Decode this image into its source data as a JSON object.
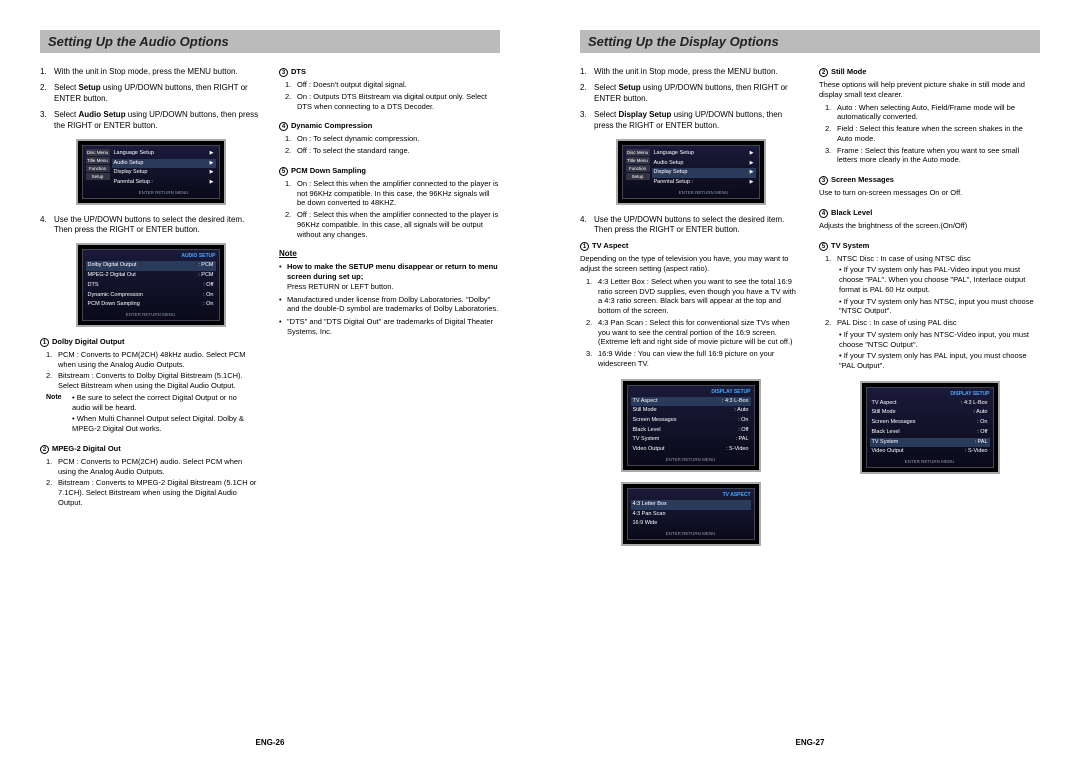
{
  "left_page": {
    "title": "Setting Up the Audio Options",
    "footer": "ENG-26",
    "steps_a": [
      {
        "n": "1.",
        "t": "With the unit in Stop mode, press the MENU button."
      },
      {
        "n": "2.",
        "t": "Select <b>Setup</b> using UP/DOWN buttons, then RIGHT or ENTER button."
      },
      {
        "n": "3.",
        "t": "Select <b>Audio Setup</b> using UP/DOWN buttons, then press the RIGHT or ENTER button."
      }
    ],
    "step4": {
      "n": "4.",
      "t": "Use the UP/DOWN buttons to select the desired item. Then press the RIGHT or ENTER button."
    },
    "menu_screenshot": {
      "tabs": [
        "Disc Menu",
        "Title Menu",
        "Function",
        "Setup"
      ],
      "items": [
        "Language Setup",
        "Audio Setup",
        "Display Setup",
        "Parental Setup :"
      ],
      "selected": 1,
      "footer": "ENTER    RETURN    MENU"
    },
    "audio_screenshot": {
      "title": "AUDIO SETUP",
      "rows": [
        {
          "l": "Dolby Digital Output",
          "r": ": PCM",
          "sel": true
        },
        {
          "l": "MPEG-2 Digital Out",
          "r": ": PCM"
        },
        {
          "l": "DTS",
          "r": ": Off"
        },
        {
          "l": "Dynamic Compression",
          "r": ": On"
        },
        {
          "l": "PCM Down Sampling",
          "r": ": On"
        }
      ],
      "footer": "ENTER    RETURN    MENU"
    },
    "defs_col1a": [
      {
        "num": "1",
        "title": "Dolby Digital Output",
        "items": [
          {
            "n": "1.",
            "t": "PCM : Converts to PCM(2CH) 48kHz audio. Select PCM when using the Analog Audio Outputs."
          },
          {
            "n": "2.",
            "t": "Bitstream : Converts to Dolby Digital Bitstream (5.1CH). Select Bitstream when using the Digital Audio Output."
          }
        ],
        "notes": [
          {
            "label": "Note",
            "t": "Be sure to select the correct Digital Output or no audio will be heard."
          },
          {
            "label": "",
            "t": "When Multi Channel Output select Digital. Dolby & MPEG-2 Digital Out works."
          }
        ]
      },
      {
        "num": "2",
        "title": "MPEG-2 Digital Out",
        "items": [
          {
            "n": "1.",
            "t": "PCM : Converts to PCM(2CH) audio. Select PCM when using the Analog Audio Outputs."
          },
          {
            "n": "2.",
            "t": "Bitstream : Converts to MPEG-2 Digital Bitstream (5.1CH or 7.1CH). Select Bitstream when using the Digital Audio Output."
          }
        ]
      }
    ],
    "defs_col2": [
      {
        "num": "3",
        "title": "DTS",
        "items": [
          {
            "n": "1.",
            "t": "Off : Doesn't output digital signal."
          },
          {
            "n": "2.",
            "t": "On : Outputs DTS Bitstream via digital output only. Select DTS when connecting to a DTS Decoder."
          }
        ]
      },
      {
        "num": "4",
        "title": "Dynamic Compression",
        "items": [
          {
            "n": "1.",
            "t": "On : To select dynamic compression."
          },
          {
            "n": "2.",
            "t": "Off : To select the standard range."
          }
        ]
      },
      {
        "num": "5",
        "title": "PCM Down Sampling",
        "items": [
          {
            "n": "1.",
            "t": "On : Select this when the amplifier connected to the player is not 96KHz compatible. In this case, the 96KHz signals will be down converted to 48KHZ."
          },
          {
            "n": "2.",
            "t": "Off : Select this when the amplifier connected to the player is 96KHz compatible. In this case, all signals will be output without any changes."
          }
        ]
      }
    ],
    "note_section": {
      "title": "Note",
      "bullets": [
        "<b>How to make the SETUP menu disappear or return to menu screen during set up;</b><br>Press RETURN or LEFT button.",
        "Manufactured under license from Dolby Laboratories. \"Dolby\" and the double-D symbol are trademarks of Dolby Laboratories.",
        "\"DTS\" and \"DTS Digital Out\" are trademarks of Digital Theater Systems, Inc."
      ]
    }
  },
  "right_page": {
    "title": "Setting Up the Display Options",
    "footer": "ENG-27",
    "steps_a": [
      {
        "n": "1.",
        "t": "With the unit in Stop mode, press the MENU button."
      },
      {
        "n": "2.",
        "t": "Select <b>Setup</b> using UP/DOWN buttons, then RIGHT or ENTER button."
      },
      {
        "n": "3.",
        "t": "Select <b>Display Setup</b> using UP/DOWN buttons, then press the RIGHT or ENTER button."
      }
    ],
    "step4": {
      "n": "4.",
      "t": "Use the UP/DOWN buttons to select the desired item. Then press the RIGHT or ENTER button."
    },
    "menu_screenshot": {
      "tabs": [
        "Disc Menu",
        "Title Menu",
        "Function",
        "Setup"
      ],
      "items": [
        "Language Setup",
        "Audio Setup",
        "Display Setup",
        "Parental Setup :"
      ],
      "selected": 2,
      "footer": "ENTER    RETURN    MENU"
    },
    "tv_aspect_def": {
      "num": "1",
      "title": "TV Aspect",
      "intro": "Depending on the type of television you have, you may want to adjust the screen setting (aspect ratio).",
      "items": [
        {
          "n": "1.",
          "t": "4:3 Letter Box : Select when you want to see the total 16:9 ratio screen DVD supplies, even though you have a TV with a 4:3 ratio screen. Black bars will appear at the top and bottom of the screen."
        },
        {
          "n": "2.",
          "t": "4:3 Pan Scan : Select this for conventional size TVs when you want to see the central portion of the 16:9 screen. (Extreme left and right side of movie picture will be cut off.)"
        },
        {
          "n": "3.",
          "t": "16:9 Wide : You can view the full 16:9 picture on your widescreen TV."
        }
      ]
    },
    "display_screenshot": {
      "title": "DISPLAY SETUP",
      "rows": [
        {
          "l": "TV Aspect",
          "r": ": 4:3 L-Box",
          "sel": true
        },
        {
          "l": "Still Mode",
          "r": ": Auto"
        },
        {
          "l": "Screen Messages",
          "r": ": On"
        },
        {
          "l": "Black Level",
          "r": ": Off"
        },
        {
          "l": "TV System",
          "r": ": PAL"
        },
        {
          "l": "Video Output",
          "r": ": S-Video"
        }
      ],
      "footer": "ENTER    RETURN    MENU"
    },
    "tvaspect_screenshot": {
      "title": "TV ASPECT",
      "rows": [
        {
          "l": "4:3 Letter Box",
          "r": "",
          "sel": true
        },
        {
          "l": "4:3 Pan Scan",
          "r": ""
        },
        {
          "l": "16:9 Wide",
          "r": ""
        }
      ],
      "footer": "ENTER    RETURN    MENU"
    },
    "defs_col2": [
      {
        "num": "2",
        "title": "Still Mode",
        "intro": "These options will help prevent picture shake in still mode and display small text clearer.",
        "items": [
          {
            "n": "1.",
            "t": "Auto : When selecting Auto, Field/Frame mode will be automatically converted."
          },
          {
            "n": "2.",
            "t": "Field : Select this feature when the screen shakes in the Auto mode."
          },
          {
            "n": "3.",
            "t": "Frame : Select this feature when you want to see small letters more clearly in the Auto mode."
          }
        ]
      },
      {
        "num": "3",
        "title": "Screen Messages",
        "plain": "Use to turn on-screen messages On or Off."
      },
      {
        "num": "4",
        "title": "Black Level",
        "plain": "Adjusts the brightness of the screen.(On/Off)"
      },
      {
        "num": "5",
        "title": "TV System",
        "items": [
          {
            "n": "1.",
            "t": "NTSC Disc : In case of using NTSC disc"
          },
          {
            "n": "",
            "t": "• If your TV system only has PAL-Video input you must choose \"PAL\". When you choose \"PAL\", Interlace output format is PAL 60 Hz output."
          },
          {
            "n": "",
            "t": "• If your TV system only has NTSC, input you must choose \"NTSC Output\"."
          },
          {
            "n": "2.",
            "t": "PAL Disc : In case of using PAL disc"
          },
          {
            "n": "",
            "t": "• If your TV system only has NTSC-Video input, you must choose \"NTSC Output\"."
          },
          {
            "n": "",
            "t": "• If your TV system only has PAL input, you must choose \"PAL Output\"."
          }
        ]
      }
    ],
    "display_screenshot2": {
      "title": "DISPLAY SETUP",
      "rows": [
        {
          "l": "TV Aspect",
          "r": ": 4:3 L-Box"
        },
        {
          "l": "Still Mode",
          "r": ": Auto"
        },
        {
          "l": "Screen Messages",
          "r": ": On"
        },
        {
          "l": "Black Level",
          "r": ": Off"
        },
        {
          "l": "TV System",
          "r": ": PAL",
          "sel": true
        },
        {
          "l": "Video Output",
          "r": ": S-Video"
        }
      ],
      "footer": "ENTER    RETURN    MENU"
    }
  }
}
